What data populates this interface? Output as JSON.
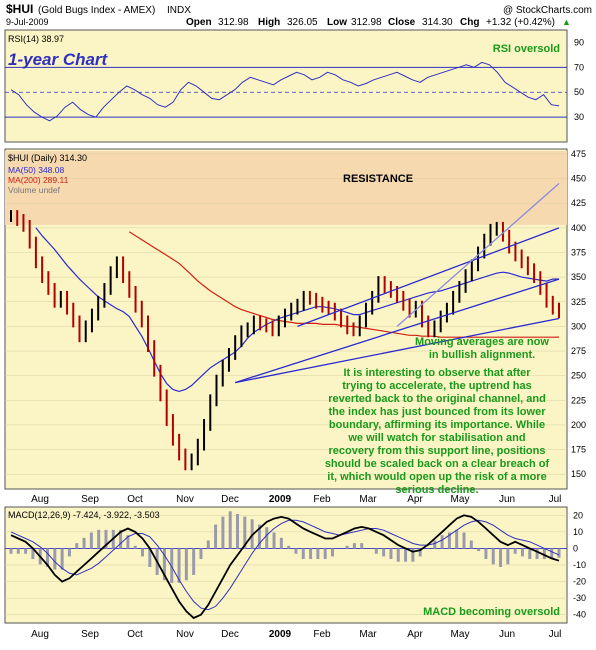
{
  "header": {
    "symbol": "$HUI",
    "name": "(Gold Bugs Index - AMEX)",
    "exchange": "INDX",
    "copyright": "@ StockCharts.com",
    "date": "9-Jul-2009",
    "open_label": "Open",
    "open": "312.98",
    "high_label": "High",
    "high": "326.05",
    "low_label": "Low",
    "low": "312.98",
    "close_label": "Close",
    "close": "314.30",
    "chg_label": "Chg",
    "chg": "+1.32 (+0.42%)",
    "chg_arrow": "▲"
  },
  "colors": {
    "panel_bg": "#fbf5c6",
    "resistance_band": "#f7d9b0",
    "price_up": "#000000",
    "price_down": "#b00000",
    "ma50": "#2a2ad0",
    "ma200": "#d02010",
    "channel": "#2a2ad0",
    "annotation": "#1a9a1a",
    "title_blue": "#3030c0"
  },
  "chart_data": [
    {
      "type": "line",
      "panel": "rsi",
      "legend": "RSI(14) 38.97",
      "title": "1-year Chart",
      "annotation": "RSI oversold",
      "ylim": [
        10,
        100
      ],
      "yticks": [
        90,
        70,
        50,
        30
      ],
      "reference_lines": [
        70,
        50,
        30
      ],
      "series": [
        {
          "name": "RSI(14)",
          "values": [
            52,
            48,
            40,
            34,
            30,
            27,
            31,
            38,
            42,
            36,
            32,
            30,
            38,
            44,
            50,
            55,
            52,
            48,
            45,
            40,
            38,
            42,
            52,
            58,
            55,
            50,
            45,
            44,
            48,
            52,
            58,
            62,
            60,
            58,
            56,
            60,
            63,
            66,
            64,
            60,
            62,
            66,
            64,
            60,
            58,
            55,
            57,
            60,
            62,
            64,
            66,
            63,
            60,
            58,
            62,
            64,
            66,
            68,
            70,
            72,
            70,
            74,
            72,
            66,
            58,
            54,
            50,
            46,
            44,
            48,
            40,
            38.97
          ]
        }
      ]
    },
    {
      "type": "candlestick",
      "panel": "price",
      "legend": "$HUI (Daily) 314.30",
      "series_labels": [
        "MA(50) 348.08",
        "MA(200) 289.11",
        "Volume undef"
      ],
      "x_labels": [
        "Aug",
        "Sep",
        "Oct",
        "Nov",
        "Dec",
        "2009",
        "Feb",
        "Mar",
        "Apr",
        "May",
        "Jun",
        "Jul"
      ],
      "ylim": [
        135,
        480
      ],
      "yticks": [
        475,
        450,
        425,
        400,
        375,
        350,
        325,
        300,
        275,
        250,
        225,
        200,
        175,
        150
      ],
      "resistance_band": [
        403,
        478
      ],
      "close": [
        412,
        408,
        402,
        385,
        365,
        350,
        338,
        325,
        330,
        318,
        305,
        290,
        300,
        312,
        325,
        338,
        355,
        365,
        350,
        335,
        320,
        305,
        280,
        255,
        230,
        205,
        185,
        170,
        160,
        165,
        180,
        200,
        225,
        245,
        260,
        272,
        285,
        295,
        298,
        305,
        302,
        300,
        296,
        305,
        312,
        318,
        322,
        330,
        328,
        324,
        320,
        318,
        312,
        305,
        298,
        296,
        305,
        318,
        330,
        345,
        340,
        335,
        330,
        322,
        315,
        320,
        305,
        295,
        300,
        310,
        318,
        330,
        340,
        352,
        362,
        375,
        388,
        398,
        400,
        392,
        380,
        372,
        365,
        358,
        350,
        338,
        325,
        318,
        314.3
      ],
      "ma50": [
        null,
        null,
        null,
        null,
        400,
        392,
        385,
        378,
        370,
        362,
        355,
        348,
        342,
        336,
        330,
        326,
        322,
        318,
        315,
        310,
        300,
        290,
        278,
        265,
        252,
        242,
        236,
        234,
        236,
        240,
        246,
        252,
        258,
        262,
        266,
        270,
        274,
        280,
        288,
        294,
        298,
        302,
        305,
        308,
        310,
        312,
        314,
        316,
        318,
        320,
        320,
        319,
        318,
        316,
        314,
        312,
        312,
        314,
        316,
        318,
        320,
        322,
        324,
        326,
        328,
        330,
        332,
        334,
        335,
        336,
        338,
        340,
        342,
        344,
        346,
        348,
        350,
        352,
        354,
        355,
        354,
        352,
        350,
        349,
        348,
        347,
        346,
        348,
        348.08
      ],
      "ma200": [
        null,
        null,
        null,
        null,
        null,
        null,
        null,
        null,
        null,
        null,
        null,
        null,
        null,
        null,
        null,
        null,
        null,
        null,
        null,
        396,
        392,
        388,
        384,
        380,
        376,
        372,
        368,
        364,
        358,
        352,
        346,
        341,
        336,
        332,
        328,
        324,
        320,
        317,
        315,
        313,
        311,
        309,
        307,
        306,
        305,
        304,
        303,
        303,
        303,
        303,
        302,
        302,
        302,
        301,
        300,
        300,
        299,
        298,
        297,
        296,
        295,
        294,
        293,
        292,
        291,
        291,
        290,
        290,
        290,
        289,
        289,
        289,
        289,
        289,
        289,
        289,
        289,
        289,
        289,
        289,
        289,
        289,
        289,
        289,
        289,
        289,
        289,
        289,
        289.11
      ],
      "annotations": [
        "RESISTANCE",
        "Moving averages are now in bullish alignment.",
        "It is interesting to observe that after trying to accelerate, the uptrend has reverted back to the original channel, and the index has just bounced from its lower boundary, affirming its importance. While we will watch for stabilisation and recovery from this support line, positions should be scaled back on a clear breach of it, which would open up the risk of a more serious decline."
      ]
    },
    {
      "type": "line",
      "panel": "macd",
      "legend": "MACD(12,26,9) -7.424, -3.922, -3.503",
      "annotation": "MACD becoming oversold",
      "ylim": [
        -45,
        25
      ],
      "yticks": [
        20,
        10,
        0,
        -10,
        -20,
        -30,
        -40
      ],
      "series": [
        {
          "name": "MACD",
          "values": [
            8,
            6,
            4,
            0,
            -5,
            -10,
            -16,
            -20,
            -18,
            -14,
            -10,
            -6,
            -2,
            2,
            6,
            10,
            12,
            10,
            6,
            0,
            -8,
            -16,
            -24,
            -32,
            -38,
            -42,
            -40,
            -34,
            -26,
            -18,
            -10,
            -4,
            2,
            8,
            12,
            16,
            18,
            19,
            18,
            15,
            12,
            10,
            8,
            6,
            6,
            8,
            10,
            12,
            13,
            12,
            10,
            8,
            5,
            2,
            0,
            -2,
            -1,
            2,
            6,
            10,
            14,
            18,
            20,
            19,
            16,
            12,
            8,
            4,
            2,
            4,
            2,
            0,
            -2,
            -4,
            -6,
            -7.424
          ]
        },
        {
          "name": "Signal",
          "values": [
            10,
            8,
            6,
            4,
            1,
            -3,
            -8,
            -12,
            -15,
            -16,
            -14,
            -12,
            -9,
            -5,
            -1,
            3,
            7,
            9,
            9,
            7,
            2,
            -4,
            -11,
            -19,
            -26,
            -32,
            -36,
            -37,
            -35,
            -30,
            -24,
            -17,
            -10,
            -3,
            3,
            8,
            12,
            15,
            17,
            17,
            16,
            14,
            12,
            10,
            9,
            8,
            9,
            10,
            11,
            12,
            12,
            11,
            9,
            7,
            5,
            3,
            2,
            2,
            3,
            5,
            8,
            11,
            14,
            16,
            17,
            16,
            14,
            11,
            8,
            6,
            5,
            4,
            2,
            0,
            -2,
            -3.922
          ]
        }
      ],
      "histogram_last": -3.503
    }
  ]
}
